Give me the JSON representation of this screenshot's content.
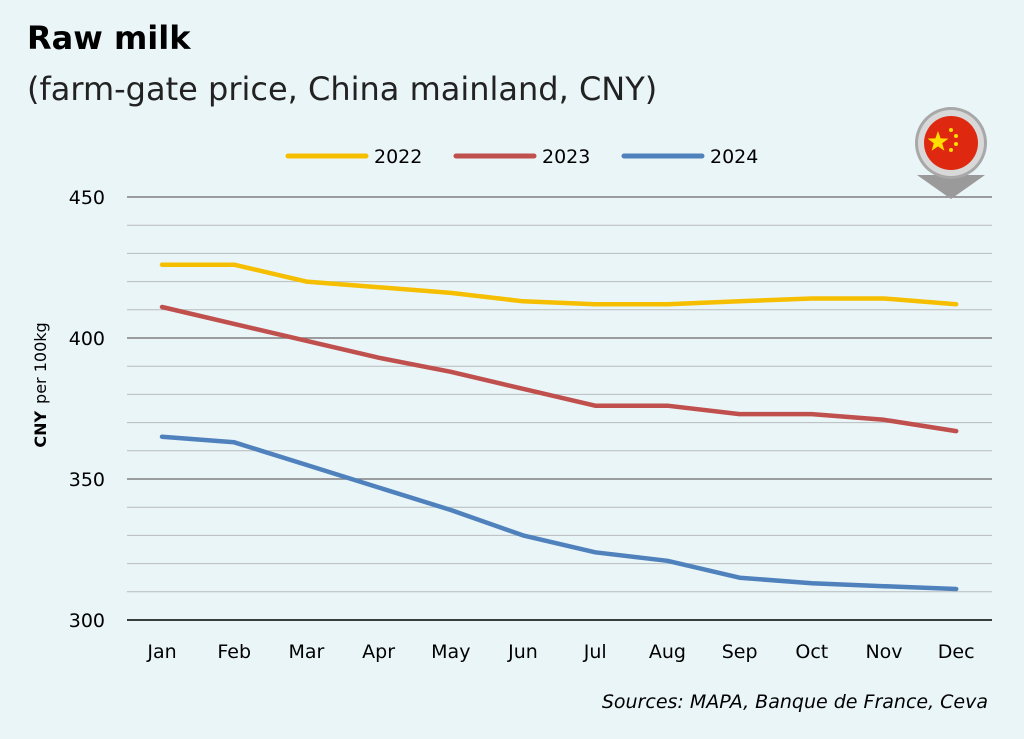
{
  "title": "Raw milk",
  "subtitle": "(farm-gate price, China mainland, CNY)",
  "source": "Sources: MAPA, Banque de France, Ceva",
  "flag_icon": "china-flag-map-pin-icon",
  "colors": {
    "background": "#eaf5f8",
    "2022": "#f5bf00",
    "2023": "#c0504d",
    "2024": "#4f81bd",
    "grid": "#b7bcbe",
    "grid_major": "#7f7f7f"
  },
  "chart_data": {
    "type": "line",
    "title": "Raw milk",
    "subtitle": "(farm-gate price, China mainland, CNY)",
    "xlabel": "",
    "ylabel": "CNY per 100kg",
    "ylabel_bold": "CNY",
    "ylabel_rest": "per 100kg",
    "ylim": [
      300,
      450
    ],
    "yticks": [
      300,
      350,
      400,
      450
    ],
    "grid": true,
    "legend_position": "top-center",
    "categories": [
      "Jan",
      "Feb",
      "Mar",
      "Apr",
      "May",
      "Jun",
      "Jul",
      "Aug",
      "Sep",
      "Oct",
      "Nov",
      "Dec"
    ],
    "series": [
      {
        "name": "2022",
        "values": [
          426,
          426,
          420,
          418,
          416,
          413,
          412,
          412,
          413,
          414,
          414,
          412
        ]
      },
      {
        "name": "2023",
        "values": [
          411,
          405,
          399,
          393,
          388,
          382,
          376,
          376,
          373,
          373,
          371,
          367
        ]
      },
      {
        "name": "2024",
        "values": [
          365,
          363,
          355,
          347,
          339,
          330,
          324,
          321,
          315,
          313,
          312,
          311
        ]
      }
    ]
  }
}
